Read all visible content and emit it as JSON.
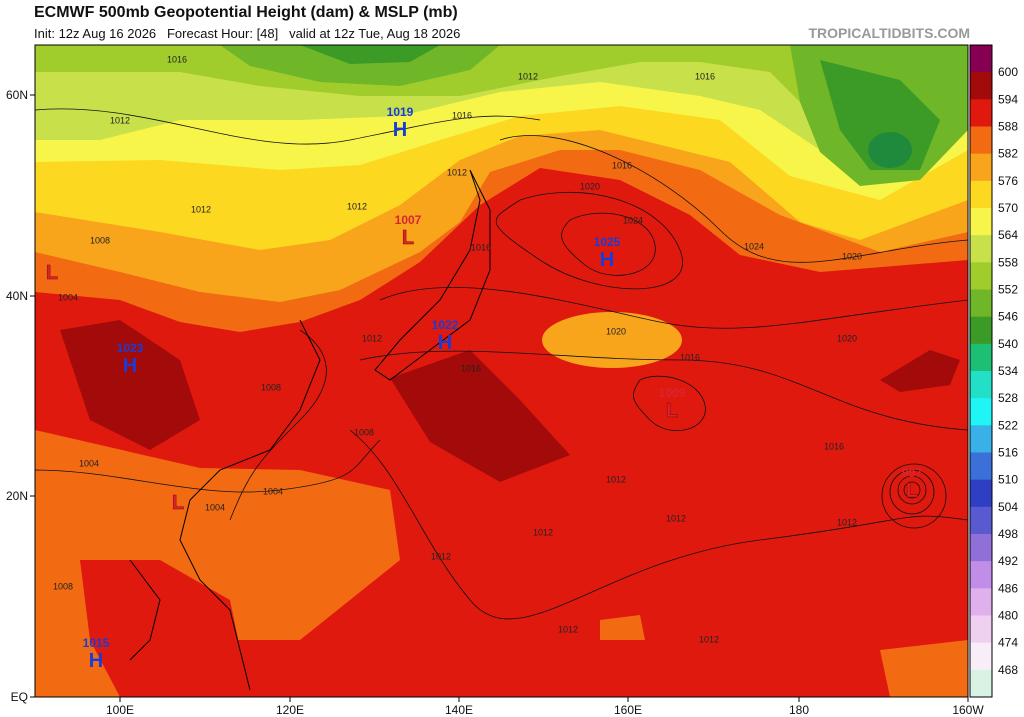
{
  "header": {
    "title": "ECMWF 500mb Geopotential Height (dam) & MSLP (mb)",
    "subtitle": "Init: 12z Aug 16 2026   Forecast Hour: [48]   valid at 12z Tue, Aug 18 2026",
    "watermark": "TROPICALTIDBITS.COM"
  },
  "colorbar": {
    "labels": [
      "600",
      "594",
      "588",
      "582",
      "576",
      "570",
      "564",
      "558",
      "552",
      "546",
      "540",
      "534",
      "528",
      "522",
      "516",
      "510",
      "504",
      "498",
      "492",
      "486",
      "480",
      "474",
      "468"
    ],
    "colors": [
      "#850050",
      "#a30a0a",
      "#e0190f",
      "#f26b12",
      "#f9a51c",
      "#fdd820",
      "#f8f54a",
      "#c8e04a",
      "#a0cc2c",
      "#6fb628",
      "#3c9a26",
      "#1cbf73",
      "#22e0c8",
      "#1ff5f5",
      "#3ab0e8",
      "#3a70d8",
      "#2e3fc4",
      "#5a5ad0",
      "#9070d8",
      "#c08ee8",
      "#e0b0ec",
      "#f0d0f0",
      "#f8eef8",
      "#d8f2e4"
    ]
  },
  "axes": {
    "lat": [
      "60N",
      "40N",
      "20N",
      "EQ"
    ],
    "lon": [
      "100E",
      "120E",
      "140E",
      "160E",
      "180",
      "160W"
    ]
  },
  "centers": [
    {
      "type": "H",
      "value": "1019"
    },
    {
      "type": "H",
      "value": "1025"
    },
    {
      "type": "H",
      "value": "1022"
    },
    {
      "type": "H",
      "value": "1023"
    },
    {
      "type": "H",
      "value": "1015"
    },
    {
      "type": "L",
      "value": "1007"
    },
    {
      "type": "L",
      "value": "1009"
    },
    {
      "type": "L",
      "value": "997"
    },
    {
      "type": "L"
    },
    {
      "type": "L"
    }
  ],
  "contour_labels": [
    "1016",
    "1012",
    "1012",
    "1016",
    "1016",
    "1012",
    "1012",
    "1012",
    "1008",
    "1020",
    "1016",
    "1024",
    "1024",
    "1020",
    "1016",
    "1020",
    "1020",
    "1016",
    "1016",
    "1012",
    "1008",
    "1008",
    "1004",
    "1004",
    "1012",
    "1016",
    "1012",
    "1012",
    "1012",
    "1012",
    "1012",
    "1012",
    "1008",
    "1004",
    "1004"
  ]
}
